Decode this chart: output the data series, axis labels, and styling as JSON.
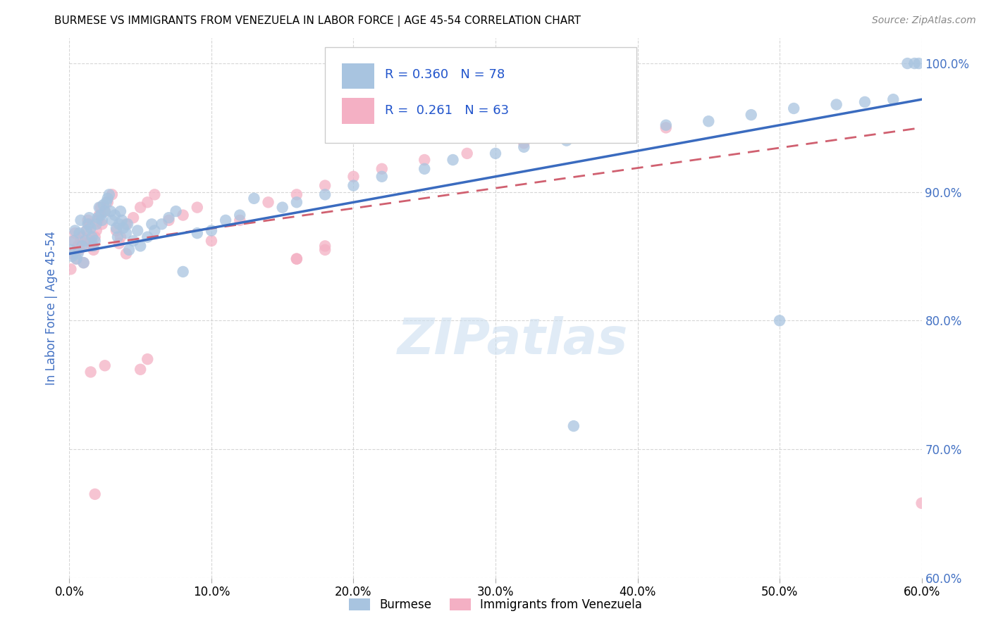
{
  "title": "BURMESE VS IMMIGRANTS FROM VENEZUELA IN LABOR FORCE | AGE 45-54 CORRELATION CHART",
  "source": "Source: ZipAtlas.com",
  "ylabel_label": "In Labor Force | Age 45-54",
  "legend_blue_R": "0.360",
  "legend_blue_N": "78",
  "legend_pink_R": "0.261",
  "legend_pink_N": "63",
  "legend_label_blue": "Burmese",
  "legend_label_pink": "Immigrants from Venezuela",
  "blue_color": "#a8c4e0",
  "pink_color": "#f4b0c4",
  "blue_line_color": "#3a6bbf",
  "pink_line_color": "#d06070",
  "watermark": "ZIPatlas",
  "xlim": [
    0.0,
    0.6
  ],
  "ylim": [
    0.6,
    1.02
  ],
  "blue_line_y0": 0.852,
  "blue_line_y1": 0.972,
  "pink_line_y0": 0.856,
  "pink_line_y1": 0.95,
  "blue_scatter_x": [
    0.001,
    0.002,
    0.003,
    0.004,
    0.005,
    0.006,
    0.007,
    0.008,
    0.009,
    0.01,
    0.011,
    0.012,
    0.013,
    0.014,
    0.015,
    0.016,
    0.017,
    0.018,
    0.019,
    0.02,
    0.021,
    0.022,
    0.023,
    0.024,
    0.025,
    0.026,
    0.027,
    0.028,
    0.029,
    0.03,
    0.032,
    0.033,
    0.034,
    0.035,
    0.036,
    0.037,
    0.038,
    0.04,
    0.041,
    0.042,
    0.045,
    0.048,
    0.05,
    0.055,
    0.058,
    0.06,
    0.065,
    0.07,
    0.075,
    0.08,
    0.09,
    0.1,
    0.11,
    0.12,
    0.13,
    0.15,
    0.16,
    0.18,
    0.2,
    0.22,
    0.25,
    0.27,
    0.3,
    0.32,
    0.35,
    0.39,
    0.42,
    0.45,
    0.48,
    0.51,
    0.54,
    0.56,
    0.58,
    0.59,
    0.595,
    0.598,
    0.355,
    0.5
  ],
  "blue_scatter_y": [
    0.855,
    0.85,
    0.862,
    0.87,
    0.848,
    0.852,
    0.868,
    0.878,
    0.858,
    0.845,
    0.862,
    0.87,
    0.875,
    0.88,
    0.872,
    0.865,
    0.858,
    0.862,
    0.875,
    0.88,
    0.888,
    0.882,
    0.878,
    0.89,
    0.885,
    0.892,
    0.895,
    0.898,
    0.885,
    0.878,
    0.882,
    0.872,
    0.865,
    0.875,
    0.885,
    0.878,
    0.872,
    0.868,
    0.875,
    0.855,
    0.862,
    0.87,
    0.858,
    0.865,
    0.875,
    0.87,
    0.875,
    0.88,
    0.885,
    0.838,
    0.868,
    0.87,
    0.878,
    0.882,
    0.895,
    0.888,
    0.892,
    0.898,
    0.905,
    0.912,
    0.918,
    0.925,
    0.93,
    0.935,
    0.94,
    0.948,
    0.952,
    0.955,
    0.96,
    0.965,
    0.968,
    0.97,
    0.972,
    1.0,
    1.0,
    1.0,
    0.718,
    0.8
  ],
  "pink_scatter_x": [
    0.001,
    0.002,
    0.003,
    0.004,
    0.005,
    0.006,
    0.007,
    0.008,
    0.009,
    0.01,
    0.011,
    0.012,
    0.013,
    0.014,
    0.015,
    0.016,
    0.017,
    0.018,
    0.019,
    0.02,
    0.021,
    0.022,
    0.023,
    0.025,
    0.027,
    0.03,
    0.033,
    0.036,
    0.04,
    0.045,
    0.05,
    0.055,
    0.06,
    0.07,
    0.08,
    0.09,
    0.1,
    0.12,
    0.14,
    0.16,
    0.18,
    0.2,
    0.22,
    0.25,
    0.28,
    0.32,
    0.38,
    0.42,
    0.16,
    0.18,
    0.035,
    0.04,
    0.025,
    0.16,
    0.18,
    0.35,
    0.3,
    0.38,
    0.05,
    0.055,
    0.015,
    0.018,
    0.6
  ],
  "pink_scatter_y": [
    0.84,
    0.852,
    0.862,
    0.868,
    0.848,
    0.858,
    0.855,
    0.862,
    0.865,
    0.845,
    0.858,
    0.87,
    0.878,
    0.875,
    0.862,
    0.858,
    0.855,
    0.865,
    0.87,
    0.878,
    0.882,
    0.888,
    0.875,
    0.885,
    0.892,
    0.898,
    0.87,
    0.865,
    0.875,
    0.88,
    0.888,
    0.892,
    0.898,
    0.878,
    0.882,
    0.888,
    0.862,
    0.878,
    0.892,
    0.898,
    0.905,
    0.912,
    0.918,
    0.925,
    0.93,
    0.938,
    0.945,
    0.95,
    0.848,
    0.855,
    0.86,
    0.852,
    0.765,
    0.848,
    0.858,
    0.952,
    0.945,
    0.958,
    0.762,
    0.77,
    0.76,
    0.665,
    0.658
  ]
}
